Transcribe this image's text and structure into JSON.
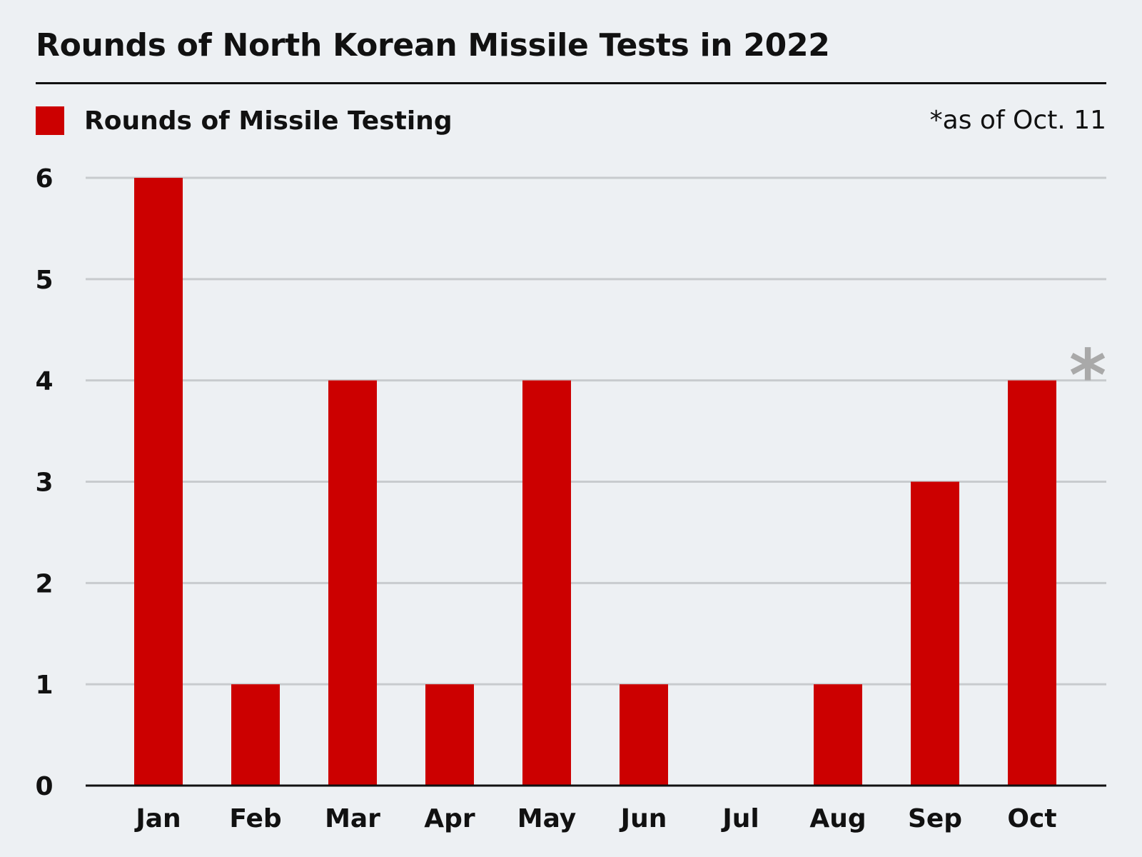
{
  "title": "Rounds of North Korean Missile Tests in 2022",
  "legend": {
    "label": "Rounds of Missile Testing"
  },
  "note": "*as of Oct. 11",
  "colors": {
    "bar": "#cc0000",
    "grid": "#c8cbce",
    "axis": "#111111",
    "asterisk": "#a9a9a9"
  },
  "chart_data": {
    "type": "bar",
    "title": "Rounds of North Korean Missile Tests in 2022",
    "categories": [
      "Jan",
      "Feb",
      "Mar",
      "Apr",
      "May",
      "Jun",
      "Jul",
      "Aug",
      "Sep",
      "Oct"
    ],
    "series": [
      {
        "name": "Rounds of Missile Testing",
        "values": [
          6,
          1,
          4,
          1,
          4,
          1,
          0,
          1,
          3,
          4
        ]
      }
    ],
    "yticks": [
      0,
      1,
      2,
      3,
      4,
      5,
      6
    ],
    "ylim": [
      0,
      6
    ],
    "grid": true,
    "legend_position": "top-left",
    "annotation": {
      "category": "Oct",
      "text": "*"
    }
  }
}
